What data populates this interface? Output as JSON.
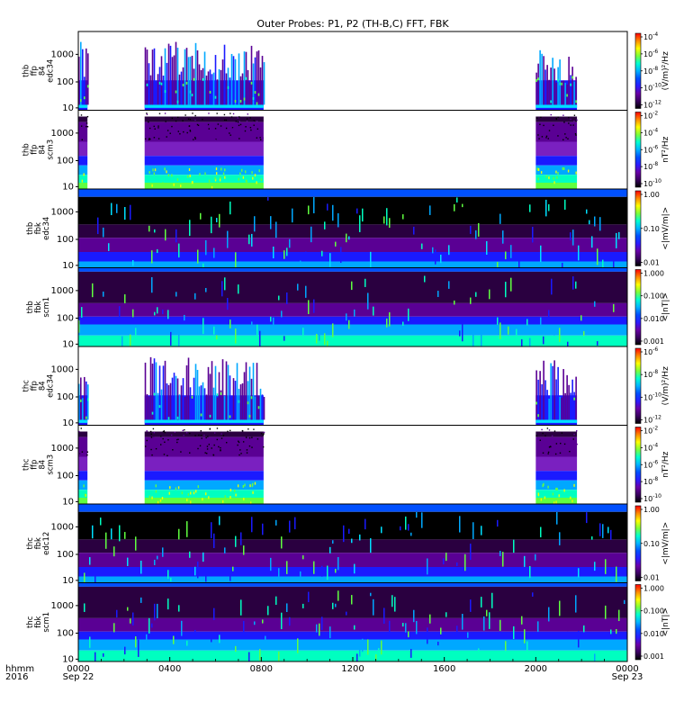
{
  "title": "Outer Probes: P1, P2 (TH-B,C) FFT, FBK",
  "colors": {
    "background": "#ffffff",
    "colorbar_scale": [
      "#000000",
      "#3a0060",
      "#6a00a8",
      "#2a1cff",
      "#0050ff",
      "#00b4ff",
      "#00ffd0",
      "#7dff3a",
      "#ffff00",
      "#ff8a00",
      "#ff0000"
    ]
  },
  "chart_data": {
    "type": "heatmap",
    "x": {
      "tick_labels": [
        "0000",
        "0400",
        "0800",
        "1200",
        "1600",
        "2000",
        "0000"
      ],
      "tick_hours": [
        0,
        4,
        8,
        12,
        16,
        20,
        24
      ],
      "range_hours": [
        0,
        24
      ],
      "first_label": "hhmm",
      "first_label_sub": "2016",
      "start_date_label": "Sep 22",
      "end_date_label": "Sep 23"
    },
    "panels": [
      {
        "label": [
          "thb",
          "ffp",
          "84",
          "edc34"
        ],
        "y_ticks": [
          "1000",
          "100",
          "10"
        ],
        "cbar_label": "(V/m)²/Hz",
        "cbar_ticks": [
          {
            "mant": "10",
            "exp": "-4"
          },
          {
            "mant": "10",
            "exp": "-6"
          },
          {
            "mant": "10",
            "exp": "-8"
          },
          {
            "mant": "10",
            "exp": "-10"
          },
          {
            "mant": "10",
            "exp": "-12"
          }
        ],
        "data_intervals_hours": [
          [
            0,
            0.4
          ],
          [
            2.9,
            8.1
          ],
          [
            20.0,
            21.8
          ]
        ],
        "activity": "high"
      },
      {
        "label": [
          "thb",
          "ffp",
          "84",
          "scm3"
        ],
        "y_ticks": [
          "1000",
          "100",
          "10"
        ],
        "cbar_label": "nT²/Hz",
        "cbar_ticks": [
          {
            "mant": "10",
            "exp": "-2"
          },
          {
            "mant": "10",
            "exp": "-4"
          },
          {
            "mant": "10",
            "exp": "-6"
          },
          {
            "mant": "10",
            "exp": "-8"
          },
          {
            "mant": "10",
            "exp": "-10"
          }
        ],
        "data_intervals_hours": [
          [
            0,
            0.4
          ],
          [
            2.9,
            8.1
          ],
          [
            20.0,
            21.8
          ]
        ],
        "activity": "low"
      },
      {
        "label": [
          "thb",
          "fbk",
          "edc34"
        ],
        "y_ticks": [
          "1000",
          "100",
          "10"
        ],
        "cbar_label": "<|mV/m|>",
        "cbar_ticks": [
          {
            "mant": "1.00",
            "exp": ""
          },
          {
            "mant": "0.10",
            "exp": ""
          },
          {
            "mant": "0.01",
            "exp": ""
          }
        ],
        "data_intervals_hours": [
          [
            0,
            24
          ]
        ],
        "activity": "bands_e"
      },
      {
        "label": [
          "thb",
          "fbk",
          "scm1"
        ],
        "y_ticks": [
          "1000",
          "100",
          "10"
        ],
        "cbar_label": "<|nT|>",
        "cbar_ticks": [
          {
            "mant": "1.000",
            "exp": ""
          },
          {
            "mant": "0.100",
            "exp": ""
          },
          {
            "mant": "0.010",
            "exp": ""
          },
          {
            "mant": "0.001",
            "exp": ""
          }
        ],
        "data_intervals_hours": [
          [
            0,
            24
          ]
        ],
        "activity": "bands_b"
      },
      {
        "label": [
          "thc",
          "ffp",
          "84",
          "edc34"
        ],
        "y_ticks": [
          "1000",
          "100",
          "10"
        ],
        "cbar_label": "(V/m)²/Hz",
        "cbar_ticks": [
          {
            "mant": "10",
            "exp": "-6"
          },
          {
            "mant": "10",
            "exp": "-8"
          },
          {
            "mant": "10",
            "exp": "-10"
          },
          {
            "mant": "10",
            "exp": "-12"
          }
        ],
        "data_intervals_hours": [
          [
            0,
            0.4
          ],
          [
            2.9,
            8.1
          ],
          [
            20.0,
            21.8
          ]
        ],
        "activity": "high"
      },
      {
        "label": [
          "thc",
          "ffp",
          "84",
          "scm3"
        ],
        "y_ticks": [
          "1000",
          "100",
          "10"
        ],
        "cbar_label": "nT²/Hz",
        "cbar_ticks": [
          {
            "mant": "10",
            "exp": "-2"
          },
          {
            "mant": "10",
            "exp": "-4"
          },
          {
            "mant": "10",
            "exp": "-6"
          },
          {
            "mant": "10",
            "exp": "-8"
          },
          {
            "mant": "10",
            "exp": "-10"
          }
        ],
        "data_intervals_hours": [
          [
            0,
            0.4
          ],
          [
            2.9,
            8.1
          ],
          [
            20.0,
            21.8
          ]
        ],
        "activity": "low"
      },
      {
        "label": [
          "thc",
          "fbk",
          "edc12"
        ],
        "y_ticks": [
          "1000",
          "100",
          "10"
        ],
        "cbar_label": "<|mV/m|>",
        "cbar_ticks": [
          {
            "mant": "1.00",
            "exp": ""
          },
          {
            "mant": "0.10",
            "exp": ""
          },
          {
            "mant": "0.01",
            "exp": ""
          }
        ],
        "data_intervals_hours": [
          [
            0,
            24
          ]
        ],
        "activity": "bands_e"
      },
      {
        "label": [
          "thc",
          "fbk",
          "scm1"
        ],
        "y_ticks": [
          "1000",
          "100",
          "10"
        ],
        "cbar_label": "<|nT|>",
        "cbar_ticks": [
          {
            "mant": "1.000",
            "exp": ""
          },
          {
            "mant": "0.100",
            "exp": ""
          },
          {
            "mant": "0.010",
            "exp": ""
          },
          {
            "mant": "0.001",
            "exp": ""
          }
        ],
        "data_intervals_hours": [
          [
            0,
            24
          ]
        ],
        "activity": "bands_b"
      }
    ]
  }
}
